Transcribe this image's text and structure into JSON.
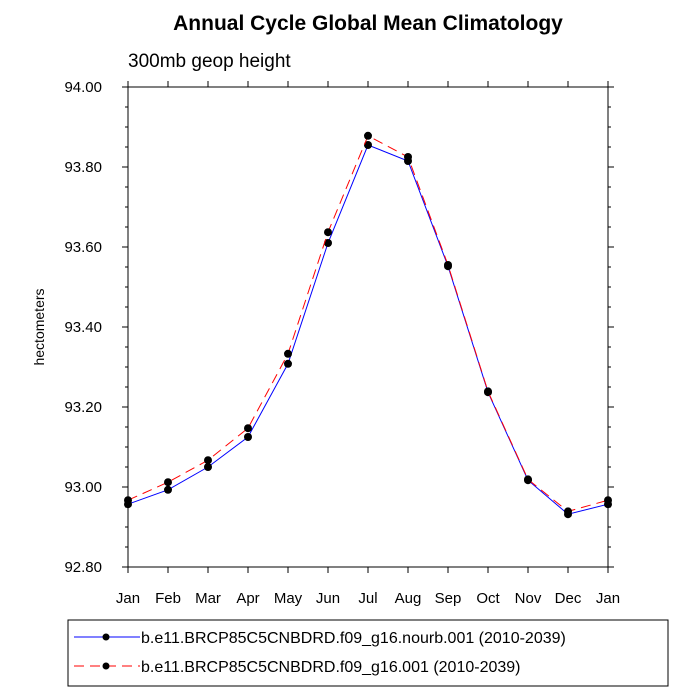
{
  "chart_data": {
    "type": "line",
    "title": "Annual Cycle Global Mean Climatology",
    "subtitle": "300mb geop height",
    "xlabel": "",
    "ylabel": "hectometers",
    "categories": [
      "Jan",
      "Feb",
      "Mar",
      "Apr",
      "May",
      "Jun",
      "Jul",
      "Aug",
      "Sep",
      "Oct",
      "Nov",
      "Dec",
      "Jan"
    ],
    "ylim": [
      92.8,
      94.0
    ],
    "yticks": [
      92.8,
      93.0,
      93.2,
      93.4,
      93.6,
      93.8,
      94.0
    ],
    "ytick_labels": [
      "92.80",
      "93.00",
      "93.20",
      "93.40",
      "93.60",
      "93.80",
      "94.00"
    ],
    "series": [
      {
        "name": "b.e11.BRCP85C5CNBDRD.f09_g16.nourb.001 (2010-2039)",
        "color": "#0000ff",
        "dash": "solid",
        "values": [
          92.957,
          92.993,
          93.05,
          93.125,
          93.308,
          93.61,
          93.855,
          93.815,
          93.552,
          93.237,
          93.017,
          92.932,
          92.957
        ]
      },
      {
        "name": "b.e11.BRCP85C5CNBDRD.f09_g16.001 (2010-2039)",
        "color": "#ff0000",
        "dash": "dashed",
        "values": [
          92.967,
          93.012,
          93.067,
          93.147,
          93.333,
          93.637,
          93.878,
          93.825,
          93.555,
          93.239,
          93.019,
          92.939,
          92.967
        ]
      }
    ],
    "legend_position": "bottom"
  }
}
